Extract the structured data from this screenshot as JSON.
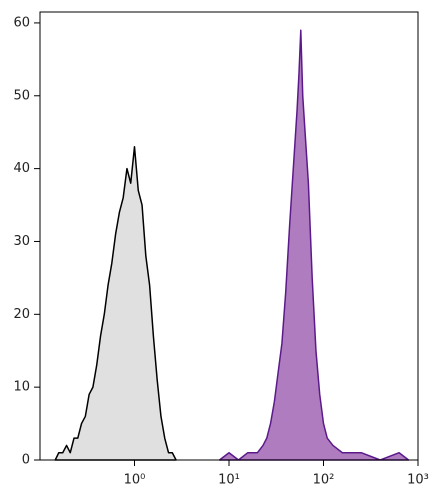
{
  "chart_data": {
    "type": "histogram-overlay",
    "xscale": "log",
    "xlim": [
      0.1,
      1000
    ],
    "ylim": [
      0,
      61.5
    ],
    "xticks": [
      {
        "value": 1,
        "label": "10⁰"
      },
      {
        "value": 10,
        "label": "10¹"
      },
      {
        "value": 100,
        "label": "10²"
      },
      {
        "value": 1000,
        "label": "10³"
      }
    ],
    "yticks": [
      0,
      10,
      20,
      30,
      40,
      50,
      60
    ],
    "series": [
      {
        "color": "#000000",
        "fill": "#e0e0e0",
        "x": [
          0.145,
          0.158,
          0.174,
          0.191,
          0.209,
          0.229,
          0.251,
          0.275,
          0.302,
          0.331,
          0.363,
          0.398,
          0.437,
          0.479,
          0.525,
          0.575,
          0.631,
          0.692,
          0.759,
          0.832,
          0.912,
          1.0,
          1.096,
          1.202,
          1.318,
          1.445,
          1.585,
          1.738,
          1.905,
          2.089,
          2.291,
          2.512,
          2.754
        ],
        "values": [
          0,
          1,
          1,
          2,
          1,
          3,
          3,
          5,
          6,
          9,
          10,
          13,
          17,
          20,
          24,
          27,
          31,
          34,
          36,
          40,
          38,
          43,
          37,
          35,
          28,
          24,
          17,
          11,
          6,
          3,
          1,
          1,
          0
        ]
      },
      {
        "color": "#5b1a8a",
        "fill": "#b07cc0",
        "x": [
          7.94,
          10,
          12.6,
          15.8,
          20,
          22.9,
          25.1,
          27.5,
          30.2,
          33.1,
          36.3,
          39.8,
          43.7,
          47.9,
          52.5,
          55,
          57.5,
          60.3,
          63.1,
          69.2,
          75.9,
          83.2,
          91.2,
          100,
          109.6,
          125.9,
          158.5,
          251,
          398,
          631,
          794
        ],
        "values": [
          0,
          1,
          0,
          1,
          1,
          2,
          3,
          5,
          8,
          12,
          16,
          23,
          32,
          40,
          48,
          53,
          59,
          50,
          46,
          38,
          25,
          15,
          9,
          5,
          3,
          2,
          1,
          1,
          0,
          1,
          0
        ]
      }
    ]
  }
}
